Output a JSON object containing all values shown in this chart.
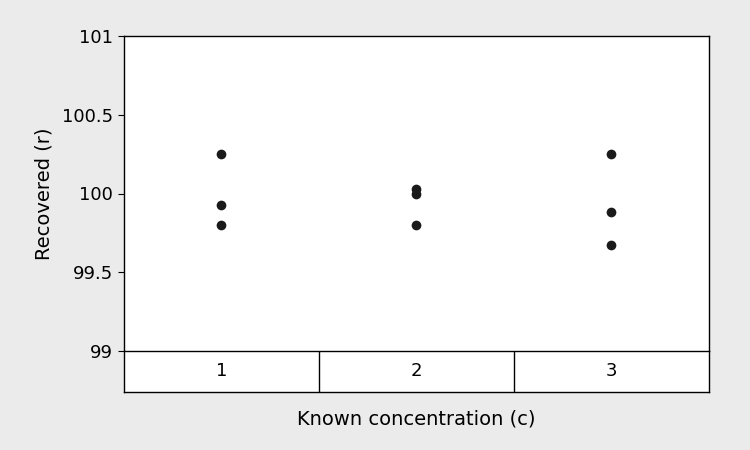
{
  "groups": [
    1,
    2,
    3
  ],
  "data": {
    "1": [
      100.25,
      99.93,
      99.8
    ],
    "2": [
      100.03,
      100.0,
      99.8
    ],
    "3": [
      100.25,
      99.88,
      99.67
    ]
  },
  "xlabel": "Known concentration (c)",
  "ylabel": "Recovered (r)",
  "ylim": [
    99.0,
    101.0
  ],
  "xlim": [
    0.5,
    3.5
  ],
  "yticks": [
    99.0,
    99.5,
    100.0,
    100.5,
    101.0
  ],
  "ytick_labels": [
    "99",
    "99.5",
    "100",
    "100.5",
    "101"
  ],
  "xticks": [
    1,
    2,
    3
  ],
  "marker_color": "#1a1a1a",
  "marker_size": 7,
  "background_color": "#ebebeb",
  "plot_background": "#ffffff",
  "font_size": 13,
  "label_font_size": 14
}
